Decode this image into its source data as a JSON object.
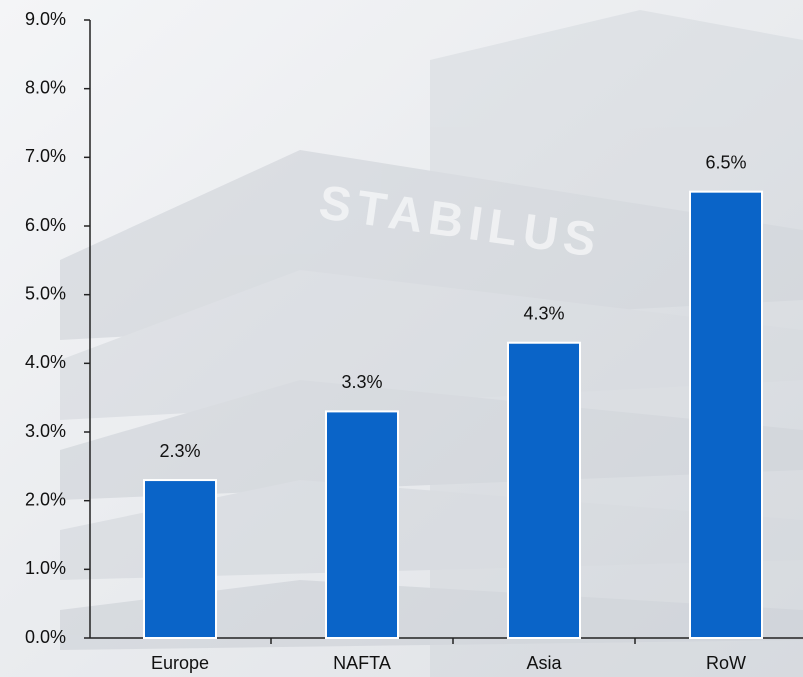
{
  "chart_data": {
    "type": "bar",
    "watermark": "STABILUS",
    "categories": [
      "Europe",
      "NAFTA",
      "Asia",
      "RoW"
    ],
    "values": [
      2.3,
      3.3,
      4.3,
      6.5
    ],
    "value_labels": [
      "2.3%",
      "3.3%",
      "4.3%",
      "6.5%"
    ],
    "color": "#0a64c8",
    "ylim": [
      0,
      9
    ],
    "yticks": [
      {
        "value": 0,
        "label": "0.0%"
      },
      {
        "value": 1,
        "label": "1.0%"
      },
      {
        "value": 2,
        "label": "2.0%"
      },
      {
        "value": 3,
        "label": "3.0%"
      },
      {
        "value": 4,
        "label": "4.0%"
      },
      {
        "value": 5,
        "label": "5.0%"
      },
      {
        "value": 6,
        "label": "6.0%"
      },
      {
        "value": 7,
        "label": "7.0%"
      },
      {
        "value": 8,
        "label": "8.0%"
      },
      {
        "value": 9,
        "label": "9.0%"
      }
    ],
    "grid": false
  }
}
